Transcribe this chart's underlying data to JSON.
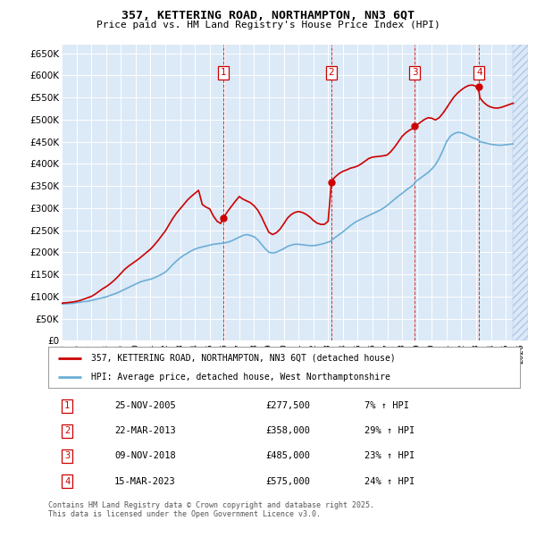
{
  "title": "357, KETTERING ROAD, NORTHAMPTON, NN3 6QT",
  "subtitle": "Price paid vs. HM Land Registry's House Price Index (HPI)",
  "yticks": [
    0,
    50000,
    100000,
    150000,
    200000,
    250000,
    300000,
    350000,
    400000,
    450000,
    500000,
    550000,
    600000,
    650000
  ],
  "xlim_start": 1995.0,
  "xlim_end": 2026.5,
  "ylim_min": 0,
  "ylim_max": 670000,
  "bg_color": "#dce9f7",
  "grid_color": "#ffffff",
  "legend_label_red": "357, KETTERING ROAD, NORTHAMPTON, NN3 6QT (detached house)",
  "legend_label_blue": "HPI: Average price, detached house, West Northamptonshire",
  "footer": "Contains HM Land Registry data © Crown copyright and database right 2025.\nThis data is licensed under the Open Government Licence v3.0.",
  "sale_points": [
    {
      "num": 1,
      "year": 2005.9,
      "price": 277500,
      "date": "25-NOV-2005",
      "pct": "7%",
      "dir": "↑"
    },
    {
      "num": 2,
      "year": 2013.22,
      "price": 358000,
      "date": "22-MAR-2013",
      "pct": "29%",
      "dir": "↑"
    },
    {
      "num": 3,
      "year": 2018.85,
      "price": 485000,
      "date": "09-NOV-2018",
      "pct": "23%",
      "dir": "↑"
    },
    {
      "num": 4,
      "year": 2023.2,
      "price": 575000,
      "date": "15-MAR-2023",
      "pct": "24%",
      "dir": "↑"
    }
  ],
  "hpi_line_color": "#6baed6",
  "price_line_color": "#cc0000",
  "hpi_data_x": [
    1995.0,
    1995.25,
    1995.5,
    1995.75,
    1996.0,
    1996.25,
    1996.5,
    1996.75,
    1997.0,
    1997.25,
    1997.5,
    1997.75,
    1998.0,
    1998.25,
    1998.5,
    1998.75,
    1999.0,
    1999.25,
    1999.5,
    1999.75,
    2000.0,
    2000.25,
    2000.5,
    2000.75,
    2001.0,
    2001.25,
    2001.5,
    2001.75,
    2002.0,
    2002.25,
    2002.5,
    2002.75,
    2003.0,
    2003.25,
    2003.5,
    2003.75,
    2004.0,
    2004.25,
    2004.5,
    2004.75,
    2005.0,
    2005.25,
    2005.5,
    2005.75,
    2005.9,
    2006.0,
    2006.25,
    2006.5,
    2006.75,
    2007.0,
    2007.25,
    2007.5,
    2007.75,
    2008.0,
    2008.25,
    2008.5,
    2008.75,
    2009.0,
    2009.25,
    2009.5,
    2009.75,
    2010.0,
    2010.25,
    2010.5,
    2010.75,
    2011.0,
    2011.25,
    2011.5,
    2011.75,
    2012.0,
    2012.25,
    2012.5,
    2012.75,
    2013.0,
    2013.22,
    2013.25,
    2013.5,
    2013.75,
    2014.0,
    2014.25,
    2014.5,
    2014.75,
    2015.0,
    2015.25,
    2015.5,
    2015.75,
    2016.0,
    2016.25,
    2016.5,
    2016.75,
    2017.0,
    2017.25,
    2017.5,
    2017.75,
    2018.0,
    2018.25,
    2018.5,
    2018.75,
    2018.85,
    2019.0,
    2019.25,
    2019.5,
    2019.75,
    2020.0,
    2020.25,
    2020.5,
    2020.75,
    2021.0,
    2021.25,
    2021.5,
    2021.75,
    2022.0,
    2022.25,
    2022.5,
    2022.75,
    2023.0,
    2023.2,
    2023.25,
    2023.5,
    2023.75,
    2024.0,
    2024.25,
    2024.5,
    2024.75,
    2025.0,
    2025.25,
    2025.5
  ],
  "hpi_data_y": [
    83000,
    83500,
    84000,
    84500,
    86000,
    87000,
    88500,
    89000,
    91000,
    93000,
    95000,
    97000,
    99000,
    102000,
    105000,
    108000,
    112000,
    116000,
    120000,
    124000,
    128000,
    132000,
    135000,
    137000,
    139000,
    142000,
    146000,
    150000,
    155000,
    163000,
    172000,
    180000,
    187000,
    193000,
    198000,
    203000,
    207000,
    210000,
    212000,
    214000,
    216000,
    218000,
    219000,
    220000,
    220500,
    221000,
    223000,
    226000,
    230000,
    234000,
    238000,
    240000,
    238000,
    235000,
    228000,
    218000,
    208000,
    200000,
    198000,
    200000,
    204000,
    208000,
    213000,
    216000,
    218000,
    218000,
    217000,
    216000,
    215000,
    215000,
    216000,
    218000,
    220000,
    223000,
    225000,
    228000,
    234000,
    240000,
    246000,
    253000,
    260000,
    266000,
    271000,
    275000,
    279000,
    283000,
    287000,
    291000,
    295000,
    300000,
    306000,
    313000,
    320000,
    327000,
    333000,
    340000,
    346000,
    352000,
    357000,
    362000,
    368000,
    374000,
    380000,
    388000,
    398000,
    412000,
    430000,
    450000,
    462000,
    468000,
    471000,
    470000,
    467000,
    463000,
    459000,
    456000,
    453000,
    450000,
    448000,
    446000,
    444000,
    443000,
    442000,
    442000,
    443000,
    444000,
    445000
  ],
  "price_data_x": [
    1995.0,
    1995.25,
    1995.5,
    1995.75,
    1996.0,
    1996.25,
    1996.5,
    1996.75,
    1997.0,
    1997.25,
    1997.5,
    1997.75,
    1998.0,
    1998.25,
    1998.5,
    1998.75,
    1999.0,
    1999.25,
    1999.5,
    1999.75,
    2000.0,
    2000.25,
    2000.5,
    2000.75,
    2001.0,
    2001.25,
    2001.5,
    2001.75,
    2002.0,
    2002.25,
    2002.5,
    2002.75,
    2003.0,
    2003.25,
    2003.5,
    2003.75,
    2004.0,
    2004.25,
    2004.5,
    2004.75,
    2005.0,
    2005.25,
    2005.5,
    2005.75,
    2005.9,
    2006.0,
    2006.25,
    2006.5,
    2006.75,
    2007.0,
    2007.25,
    2007.5,
    2007.75,
    2008.0,
    2008.25,
    2008.5,
    2008.75,
    2009.0,
    2009.25,
    2009.5,
    2009.75,
    2010.0,
    2010.25,
    2010.5,
    2010.75,
    2011.0,
    2011.25,
    2011.5,
    2011.75,
    2012.0,
    2012.25,
    2012.5,
    2012.75,
    2013.0,
    2013.22,
    2013.25,
    2013.5,
    2013.75,
    2014.0,
    2014.25,
    2014.5,
    2014.75,
    2015.0,
    2015.25,
    2015.5,
    2015.75,
    2016.0,
    2016.25,
    2016.5,
    2016.75,
    2017.0,
    2017.25,
    2017.5,
    2017.75,
    2018.0,
    2018.25,
    2018.5,
    2018.75,
    2018.85,
    2019.0,
    2019.25,
    2019.5,
    2019.75,
    2020.0,
    2020.25,
    2020.5,
    2020.75,
    2021.0,
    2021.25,
    2021.5,
    2021.75,
    2022.0,
    2022.25,
    2022.5,
    2022.75,
    2023.0,
    2023.2,
    2023.25,
    2023.5,
    2023.75,
    2024.0,
    2024.25,
    2024.5,
    2024.75,
    2025.0,
    2025.25,
    2025.5
  ],
  "price_data_y": [
    85000,
    85500,
    86500,
    87500,
    89000,
    91000,
    94000,
    97000,
    100000,
    105000,
    111000,
    117000,
    122000,
    128000,
    135000,
    143000,
    152000,
    161000,
    168000,
    174000,
    180000,
    186000,
    193000,
    200000,
    207000,
    216000,
    226000,
    237000,
    248000,
    262000,
    276000,
    288000,
    298000,
    308000,
    318000,
    326000,
    333000,
    340000,
    308000,
    302000,
    298000,
    282000,
    270000,
    265000,
    277500,
    282000,
    294000,
    305000,
    316000,
    326000,
    320000,
    316000,
    312000,
    305000,
    295000,
    280000,
    262000,
    245000,
    240000,
    244000,
    252000,
    264000,
    277000,
    285000,
    290000,
    292000,
    290000,
    286000,
    280000,
    272000,
    266000,
    263000,
    263000,
    270000,
    358000,
    362000,
    371000,
    378000,
    383000,
    386000,
    390000,
    392000,
    395000,
    400000,
    406000,
    412000,
    415000,
    416000,
    417000,
    418000,
    420000,
    428000,
    438000,
    450000,
    462000,
    470000,
    476000,
    480000,
    485000,
    488000,
    494000,
    500000,
    504000,
    503000,
    499000,
    504000,
    514000,
    526000,
    539000,
    551000,
    560000,
    567000,
    573000,
    577000,
    578000,
    575000,
    562000,
    549000,
    539000,
    532000,
    528000,
    526000,
    526000,
    528000,
    531000,
    534000,
    537000
  ]
}
